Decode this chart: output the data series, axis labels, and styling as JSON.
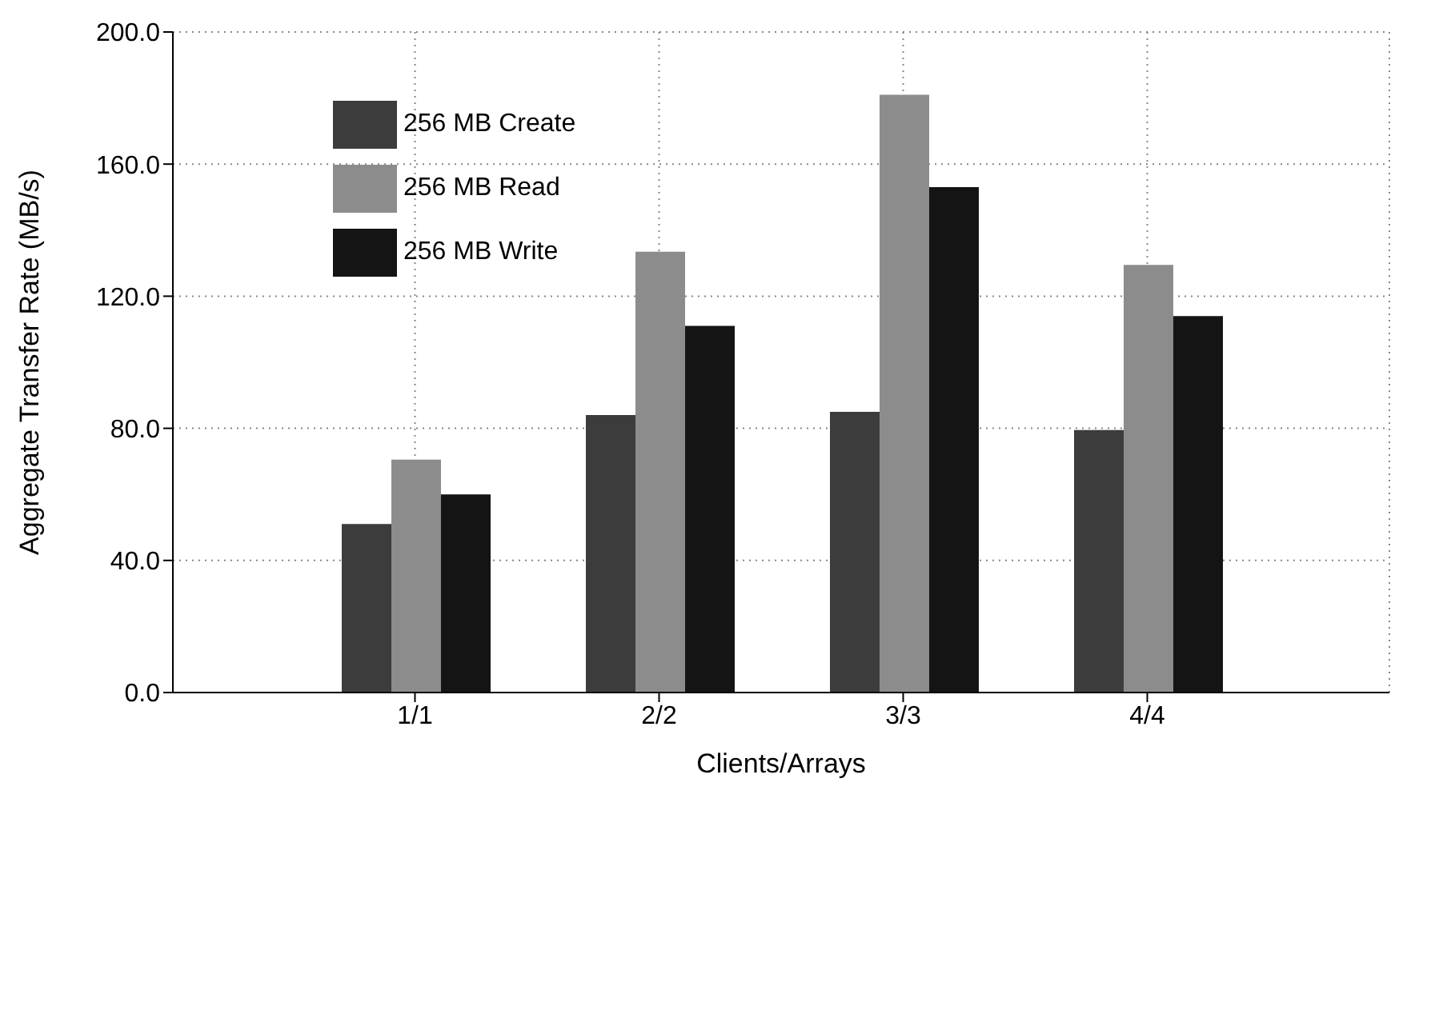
{
  "chart_data": {
    "type": "bar",
    "xlabel": "Clients/Arrays",
    "ylabel": "Aggregate Transfer Rate (MB/s)",
    "categories": [
      "1/1",
      "2/2",
      "3/3",
      "4/4"
    ],
    "series": [
      {
        "name": "256 MB Create",
        "color": "#3c3c3c",
        "values": [
          51,
          84,
          85,
          79.5
        ]
      },
      {
        "name": "256 MB Read",
        "color": "#8c8c8c",
        "values": [
          70.5,
          133.5,
          181,
          129.5
        ]
      },
      {
        "name": "256 MB Write",
        "color": "#141414",
        "values": [
          60,
          111,
          153,
          114
        ]
      }
    ],
    "ylim": [
      0,
      200
    ],
    "yticks": [
      {
        "value": 0,
        "label": "0.0"
      },
      {
        "value": 40,
        "label": "40.0"
      },
      {
        "value": 80,
        "label": "80.0"
      },
      {
        "value": 120,
        "label": "120.0"
      },
      {
        "value": 160,
        "label": "160.0"
      },
      {
        "value": 200,
        "label": "200.0"
      }
    ],
    "grid": true,
    "legend": "top left"
  }
}
